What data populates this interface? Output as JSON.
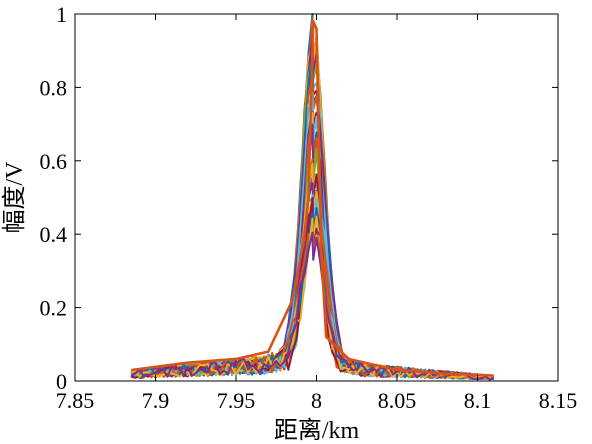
{
  "chart_data": {
    "type": "line",
    "xlabel": "距离/km",
    "ylabel": "幅度/V",
    "xlim": [
      7.85,
      8.15
    ],
    "ylim": [
      0,
      1
    ],
    "xticks": [
      7.85,
      7.9,
      7.95,
      8.0,
      8.05,
      8.1,
      8.15
    ],
    "xtick_labels": [
      "7.85",
      "7.9",
      "7.95",
      "8",
      "8.05",
      "8.1",
      "8.15"
    ],
    "yticks": [
      0,
      0.2,
      0.4,
      0.6,
      0.8,
      1.0
    ],
    "ytick_labels": [
      "0",
      "0.2",
      "0.4",
      "0.6",
      "0.8",
      "1"
    ],
    "grid": false,
    "legend": "none",
    "x_range_of_data": [
      7.885,
      8.11
    ],
    "peak_x": 7.998,
    "series_count": 40,
    "series_peaks": [
      0.98,
      0.905,
      0.88,
      0.86,
      0.84,
      0.82,
      0.8,
      0.78,
      0.76,
      0.74,
      0.72,
      0.7,
      0.68,
      0.66,
      0.64,
      0.62,
      0.6,
      0.58,
      0.56,
      0.54,
      0.52,
      0.5,
      0.49,
      0.47,
      0.46,
      0.44,
      0.43,
      0.42,
      0.41,
      0.4,
      0.39,
      0.38,
      0.37,
      0.36,
      0.355,
      0.35,
      0.345,
      0.34,
      0.335,
      0.33
    ],
    "highlight_series": {
      "peak": 0.98,
      "shoulder": 0.38,
      "color": "#d95319"
    },
    "colors": [
      "#0072bd",
      "#d95319",
      "#edb120",
      "#7e2f8e",
      "#77ac30",
      "#4dbeee",
      "#a2142f"
    ]
  }
}
